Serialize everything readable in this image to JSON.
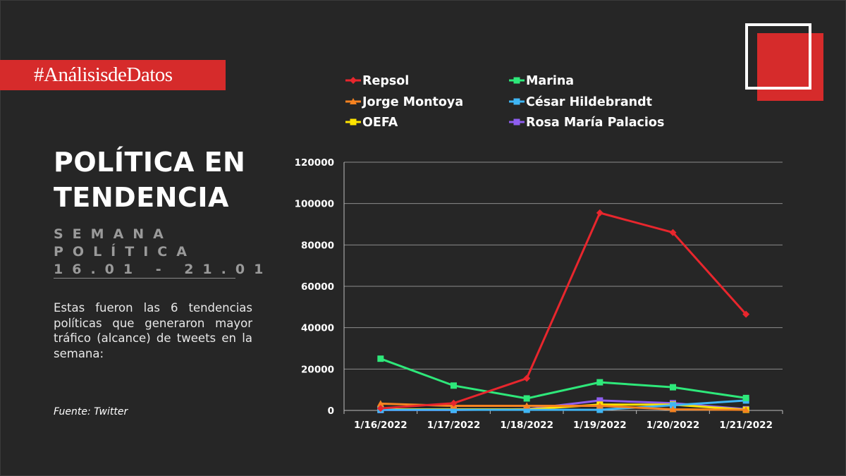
{
  "hashtag": "#AnálisisdeDatos",
  "title_lines": [
    "POLÍTICA EN",
    "TENDENCIA"
  ],
  "week": {
    "line1": "SEMANA",
    "line2": "POLÍTICA",
    "line3": "16.01 - 21.01"
  },
  "description": "Estas fueron las 6 tendencias políticas que generaron mayor tráfico (alcance) de tweets en la semana:",
  "source": "Fuente: Twitter",
  "colors": {
    "background": "#262626",
    "accent": "#d62b2b",
    "muted": "#9a9a9a"
  },
  "chart_data": {
    "type": "line",
    "title": "",
    "xlabel": "",
    "ylabel": "",
    "categories": [
      "1/16/2022",
      "1/17/2022",
      "1/18/2022",
      "1/19/2022",
      "1/20/2022",
      "1/21/2022"
    ],
    "ylim": [
      0,
      120000
    ],
    "yticks": [
      0,
      20000,
      40000,
      60000,
      80000,
      100000,
      120000
    ],
    "grid": true,
    "legend_position": "top",
    "series": [
      {
        "name": "Repsol",
        "color": "#e8262d",
        "marker": "diamond",
        "values": [
          1000,
          3500,
          15500,
          95500,
          86000,
          46500
        ]
      },
      {
        "name": "Marina",
        "color": "#2ee87a",
        "marker": "square",
        "values": [
          25000,
          12000,
          5800,
          13600,
          11200,
          6000
        ]
      },
      {
        "name": "Jorge Montoya",
        "color": "#f58220",
        "marker": "triangle",
        "values": [
          3300,
          2200,
          2200,
          2200,
          500,
          300
        ]
      },
      {
        "name": "César Hildebrandt",
        "color": "#3fb6f5",
        "marker": "square",
        "values": [
          300,
          300,
          300,
          300,
          2500,
          4800
        ]
      },
      {
        "name": "OEFA",
        "color": "#ffe400",
        "marker": "square",
        "values": [
          500,
          500,
          500,
          2800,
          2800,
          300
        ]
      },
      {
        "name": "Rosa María Palacios",
        "color": "#8f5ef0",
        "marker": "square",
        "values": [
          200,
          200,
          600,
          4800,
          3500,
          600
        ]
      }
    ]
  }
}
